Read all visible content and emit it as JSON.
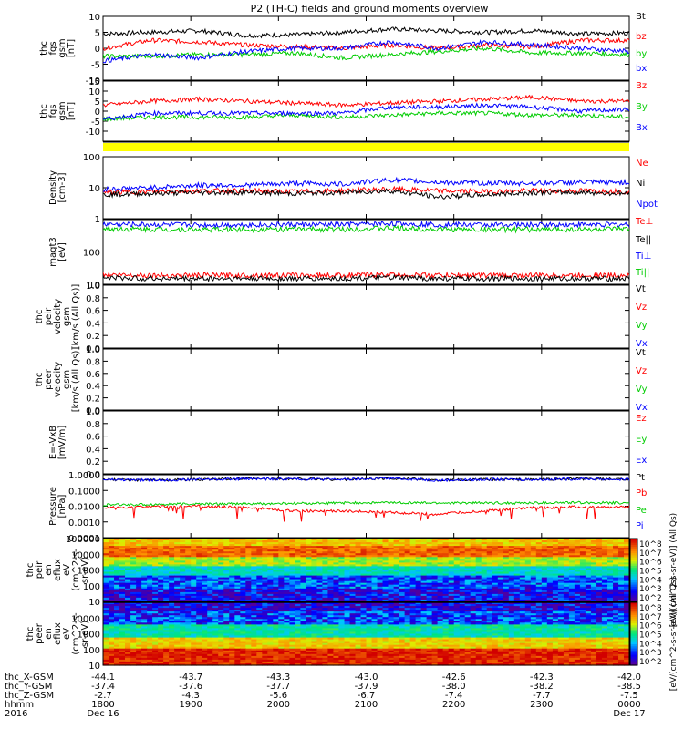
{
  "title": "P2 (TH-C) fields and ground moments overview",
  "chart_data": [
    {
      "type": "line",
      "ylabel": [
        "thc",
        "fgs",
        "gsm",
        "[nT]"
      ],
      "ylim": [
        -10,
        10
      ],
      "ticks": [
        "10",
        "5",
        "0",
        "-5",
        "-10"
      ],
      "tick_values": [
        10,
        5,
        0,
        -5,
        -10
      ],
      "series": [
        {
          "name": "Bt",
          "color": "#000000",
          "values": [
            4.5,
            5,
            5.5,
            4,
            4.2,
            5,
            6,
            5.5,
            5,
            5.5,
            4.5,
            4.8
          ]
        },
        {
          "name": "bz",
          "color": "#ff0000",
          "values": [
            0,
            2.5,
            2,
            1,
            0.5,
            0,
            1,
            0,
            1,
            0.5,
            2.5,
            2.5
          ]
        },
        {
          "name": "by",
          "color": "#00cc00",
          "values": [
            -2.5,
            -2.5,
            -2,
            -2,
            -1.5,
            -3,
            -2,
            -1,
            0,
            -1.5,
            -1.5,
            -2
          ]
        },
        {
          "name": "bx",
          "color": "#0000ff",
          "values": [
            -4,
            -2,
            -3,
            -1,
            0,
            0,
            2,
            0,
            2,
            1,
            0,
            -1
          ]
        }
      ]
    },
    {
      "type": "line",
      "ylabel": [
        "thc",
        "fgs",
        "gsm",
        "[nT]"
      ],
      "ylim": [
        -15,
        15
      ],
      "ticks": [
        "15",
        "10",
        "5",
        "0",
        "-5",
        "-10"
      ],
      "tick_values": [
        15,
        10,
        5,
        0,
        -5,
        -10
      ],
      "series": [
        {
          "name": "Bz",
          "color": "#ff0000",
          "values": [
            3,
            5,
            6,
            5,
            4,
            3,
            4,
            5,
            6,
            7,
            5,
            5
          ]
        },
        {
          "name": "By",
          "color": "#00cc00",
          "values": [
            -4,
            -3,
            -3,
            -3,
            -2,
            -3,
            -2,
            -1,
            -1,
            -2,
            -2,
            -3
          ]
        },
        {
          "name": "Bx",
          "color": "#0000ff",
          "values": [
            -4,
            -1,
            -1,
            -1,
            -1,
            -1,
            2,
            2,
            3,
            2,
            0,
            1
          ]
        }
      ]
    },
    {
      "type": "line",
      "scale": "log",
      "ylabel": [
        "Density",
        "[cm-3]"
      ],
      "ylim": [
        1,
        100
      ],
      "ticks": [
        "100",
        "10",
        "1"
      ],
      "tick_values": [
        100,
        10,
        1
      ],
      "series": [
        {
          "name": "Ne",
          "color": "#ff0000",
          "values": [
            7,
            7.5,
            8,
            8,
            7.5,
            8,
            9,
            8,
            7.5,
            8,
            8,
            7.5
          ]
        },
        {
          "name": "Ni",
          "color": "#000000",
          "values": [
            6,
            6.5,
            7,
            7,
            6.5,
            7,
            8,
            5,
            6,
            7,
            7,
            6.5
          ]
        },
        {
          "name": "Npot",
          "color": "#0000ff",
          "values": [
            9,
            10,
            12,
            12,
            14,
            13,
            18,
            15,
            14,
            14,
            15,
            15
          ]
        }
      ]
    },
    {
      "type": "line",
      "scale": "log",
      "ylabel": [
        "magt3",
        "[eV]"
      ],
      "ylim": [
        10,
        1000
      ],
      "ticks": [
        "100",
        "10"
      ],
      "tick_values": [
        100,
        10
      ],
      "series": [
        {
          "name": "Te⊥",
          "color": "#ff0000",
          "values": [
            20,
            19,
            19,
            19,
            19,
            19,
            20,
            19,
            19,
            19,
            19,
            19
          ]
        },
        {
          "name": "Te||",
          "color": "#000000",
          "values": [
            16,
            15,
            15,
            15,
            15,
            15,
            16,
            15,
            15,
            15,
            15,
            15
          ]
        },
        {
          "name": "Ti⊥",
          "color": "#0000ff",
          "values": [
            720,
            700,
            680,
            690,
            700,
            700,
            760,
            700,
            690,
            690,
            700,
            700
          ]
        },
        {
          "name": "Ti||",
          "color": "#00cc00",
          "values": [
            520,
            500,
            490,
            500,
            500,
            500,
            540,
            500,
            490,
            490,
            500,
            500
          ]
        }
      ]
    },
    {
      "type": "line",
      "ylabel": [
        "thc",
        "peir",
        "velocity",
        "gsm",
        "[km/s (All Qs)]"
      ],
      "ylim": [
        0,
        1
      ],
      "ticks": [
        "1.0",
        "0.8",
        "0.6",
        "0.4",
        "0.2",
        "0.0"
      ],
      "tick_values": [
        1,
        0.8,
        0.6,
        0.4,
        0.2,
        0
      ],
      "series": [
        {
          "name": "Vt",
          "color": "#000000",
          "values": []
        },
        {
          "name": "Vz",
          "color": "#ff0000",
          "values": []
        },
        {
          "name": "Vy",
          "color": "#00cc00",
          "values": []
        },
        {
          "name": "Vx",
          "color": "#0000ff",
          "values": []
        }
      ]
    },
    {
      "type": "line",
      "ylabel": [
        "thc",
        "peer",
        "velocity",
        "gsm",
        "[km/s (All Qs)]"
      ],
      "ylim": [
        0,
        1
      ],
      "ticks": [
        "1.0",
        "0.8",
        "0.6",
        "0.4",
        "0.2",
        "0.0"
      ],
      "tick_values": [
        1,
        0.8,
        0.6,
        0.4,
        0.2,
        0
      ],
      "series": [
        {
          "name": "Vt",
          "color": "#000000",
          "values": []
        },
        {
          "name": "Vz",
          "color": "#ff0000",
          "values": []
        },
        {
          "name": "Vy",
          "color": "#00cc00",
          "values": []
        },
        {
          "name": "Vx",
          "color": "#0000ff",
          "values": []
        }
      ]
    },
    {
      "type": "line",
      "ylabel": [
        "E=-VxB",
        "[mV/m]"
      ],
      "ylim": [
        0,
        1
      ],
      "ticks": [
        "1.0",
        "0.8",
        "0.6",
        "0.4",
        "0.2",
        "0.0"
      ],
      "tick_values": [
        1,
        0.8,
        0.6,
        0.4,
        0.2,
        0
      ],
      "series": [
        {
          "name": "Ez",
          "color": "#ff0000",
          "values": []
        },
        {
          "name": "Ey",
          "color": "#00cc00",
          "values": []
        },
        {
          "name": "Ex",
          "color": "#0000ff",
          "values": []
        }
      ]
    },
    {
      "type": "line",
      "scale": "log",
      "ylabel": [
        "Pressure",
        "[nPa]"
      ],
      "ylim": [
        0.0001,
        1
      ],
      "ticks": [
        "1.0000",
        "0.1000",
        "0.0100",
        "0.0010",
        "0.0001"
      ],
      "tick_values": [
        1,
        0.1,
        0.01,
        0.001,
        0.0001
      ],
      "series": [
        {
          "name": "Pt",
          "color": "#000000",
          "values": [
            0.5,
            0.45,
            0.5,
            0.55,
            0.55,
            0.5,
            0.6,
            0.45,
            0.5,
            0.5,
            0.55,
            0.5
          ]
        },
        {
          "name": "Pb",
          "color": "#ff0000",
          "values": [
            0.008,
            0.009,
            0.01,
            0.008,
            0.005,
            0.005,
            0.004,
            0.003,
            0.005,
            0.008,
            0.009,
            0.009
          ]
        },
        {
          "name": "Pe",
          "color": "#00cc00",
          "values": [
            0.012,
            0.013,
            0.014,
            0.014,
            0.015,
            0.016,
            0.017,
            0.016,
            0.016,
            0.016,
            0.017,
            0.016
          ]
        },
        {
          "name": "Pi",
          "color": "#0000ff",
          "values": [
            0.5,
            0.45,
            0.5,
            0.55,
            0.55,
            0.5,
            0.6,
            0.45,
            0.5,
            0.5,
            0.55,
            0.5
          ]
        }
      ]
    },
    {
      "type": "heatmap",
      "scale": "log",
      "ylabel": [
        "thc",
        "peir",
        "en",
        "eflux",
        "eV",
        "(cm^2-s-",
        "sr-eV)"
      ],
      "ylim": [
        10,
        100000
      ],
      "ticks": [
        "100000",
        "10000",
        "1000",
        "100",
        "10"
      ],
      "tick_values": [
        100000,
        10000,
        1000,
        100,
        10
      ],
      "colorbar": {
        "label": "[eV/(cm^2-s-sr-eV)] (All Qs)",
        "ticks": [
          "10^8",
          "10^7",
          "10^6",
          "10^5",
          "10^4",
          "10^3",
          "10^2"
        ]
      }
    },
    {
      "type": "heatmap",
      "scale": "log",
      "ylabel": [
        "thc",
        "peer",
        "en",
        "eflux",
        "eV",
        "(cm^2-s-",
        "sr-eV)"
      ],
      "ylim": [
        10,
        100000
      ],
      "ticks": [
        "10000",
        "1000",
        "100",
        "10"
      ],
      "tick_values": [
        10000,
        1000,
        100,
        10
      ],
      "colorbar": {
        "label": "[eV/(cm^2-s-sr-eV)] (All Qs)",
        "ticks": [
          "10^8",
          "10^7",
          "10^6",
          "10^5",
          "10^4",
          "10^3",
          "10^2"
        ]
      }
    }
  ],
  "axis": {
    "rows": [
      {
        "label": "thc_X-GSM",
        "values": [
          "-44.1",
          "-43.7",
          "-43.3",
          "-43.0",
          "-42.6",
          "-42.3",
          "-42.0"
        ]
      },
      {
        "label": "thc_Y-GSM",
        "values": [
          "-37.4",
          "-37.6",
          "-37.7",
          "-37.9",
          "-38.0",
          "-38.2",
          "-38.5"
        ]
      },
      {
        "label": "thc_Z-GSM",
        "values": [
          "-2.7",
          "-4.3",
          "-5.6",
          "-6.7",
          "-7.4",
          "-7.7",
          "-7.5"
        ]
      },
      {
        "label": "hhmm",
        "values": [
          "1800",
          "1900",
          "2000",
          "2100",
          "2200",
          "2300",
          "0000"
        ]
      }
    ],
    "year": "2016",
    "date_start": "Dec 16",
    "date_end": "Dec 17"
  }
}
